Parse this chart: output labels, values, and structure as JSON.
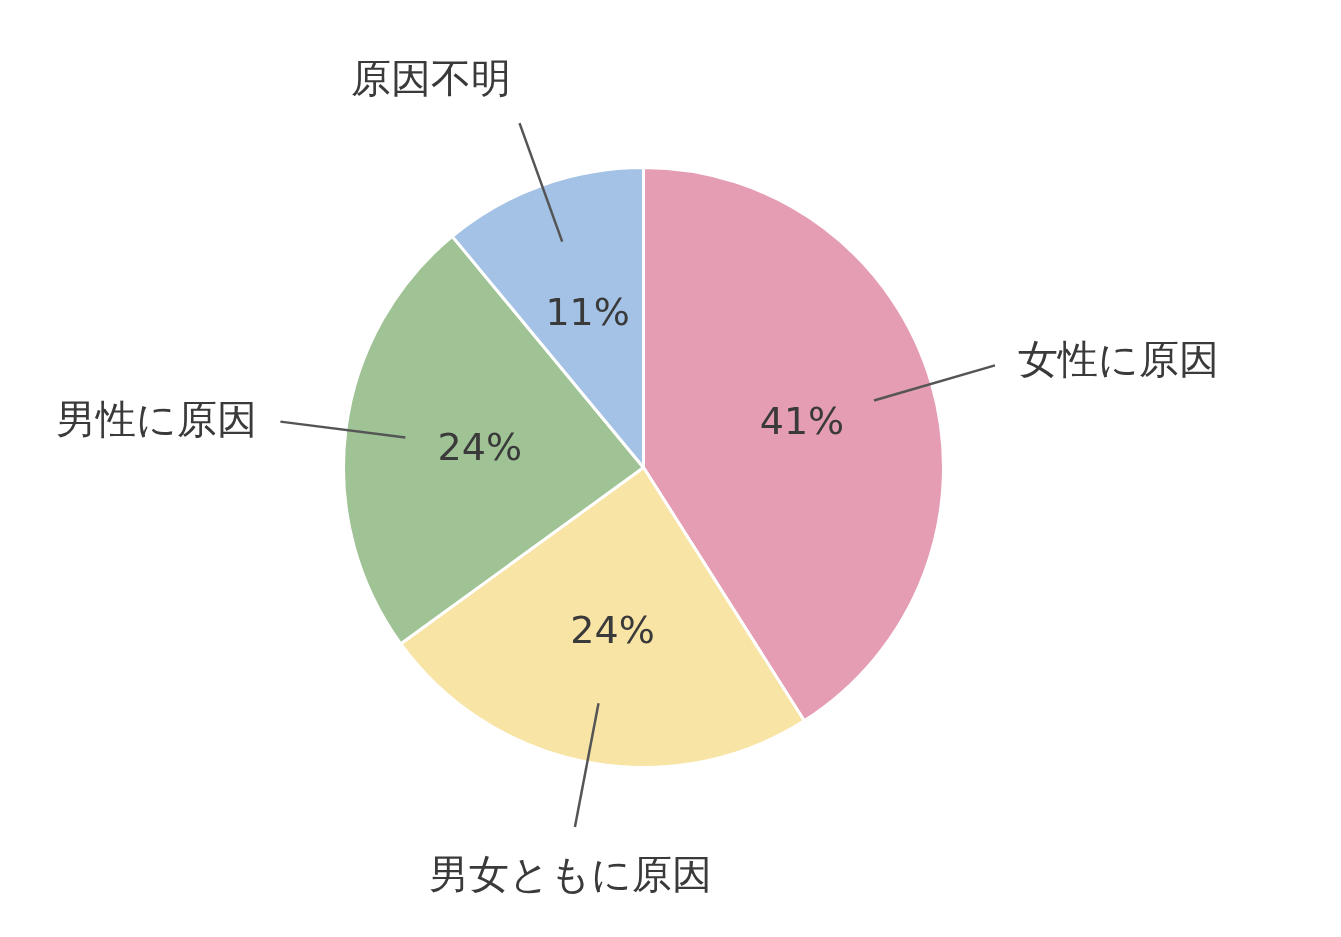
{
  "chart_data": {
    "type": "pie",
    "categories": [
      "女性に原因",
      "男女ともに原因",
      "男性に原因",
      "原因不明"
    ],
    "values": [
      41,
      24,
      24,
      11
    ],
    "colors": [
      "#e59db3",
      "#f8e4a4",
      "#a0c396",
      "#a4c2e5"
    ],
    "value_labels": [
      "41%",
      "24%",
      "24%",
      "11%"
    ]
  }
}
